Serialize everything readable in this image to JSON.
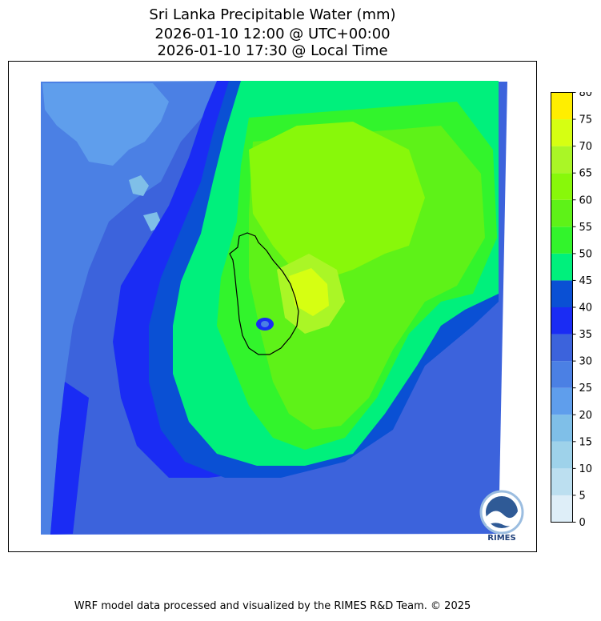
{
  "title": {
    "line1": "Sri Lanka Precipitable Water (mm)",
    "line2": "2026-01-10 12:00 @ UTC+00:00",
    "line3": "2026-01-10 17:30 @ Local Time"
  },
  "colorbar": {
    "levels": [
      0,
      5,
      10,
      15,
      20,
      25,
      30,
      35,
      40,
      45,
      50,
      55,
      60,
      65,
      70,
      75,
      80
    ],
    "colors": [
      "#deeef8",
      "#bcdff0",
      "#9ed2ea",
      "#7fbfe8",
      "#5f9eec",
      "#4b80e4",
      "#3c63dc",
      "#1a2cf4",
      "#0a50d4",
      "#00f07c",
      "#32f42c",
      "#5ef218",
      "#88f80a",
      "#aaf626",
      "#d6ff12",
      "#ffee00"
    ],
    "tick_labels": [
      "0",
      "5",
      "10",
      "15",
      "20",
      "25",
      "30",
      "35",
      "40",
      "45",
      "50",
      "55",
      "60",
      "65",
      "70",
      "75",
      "80"
    ]
  },
  "logo": {
    "text": "RIMES",
    "icon": "rimes-logo-icon"
  },
  "footer": "WRF model data processed and visualized by the RIMES R&D Team. © 2025"
}
